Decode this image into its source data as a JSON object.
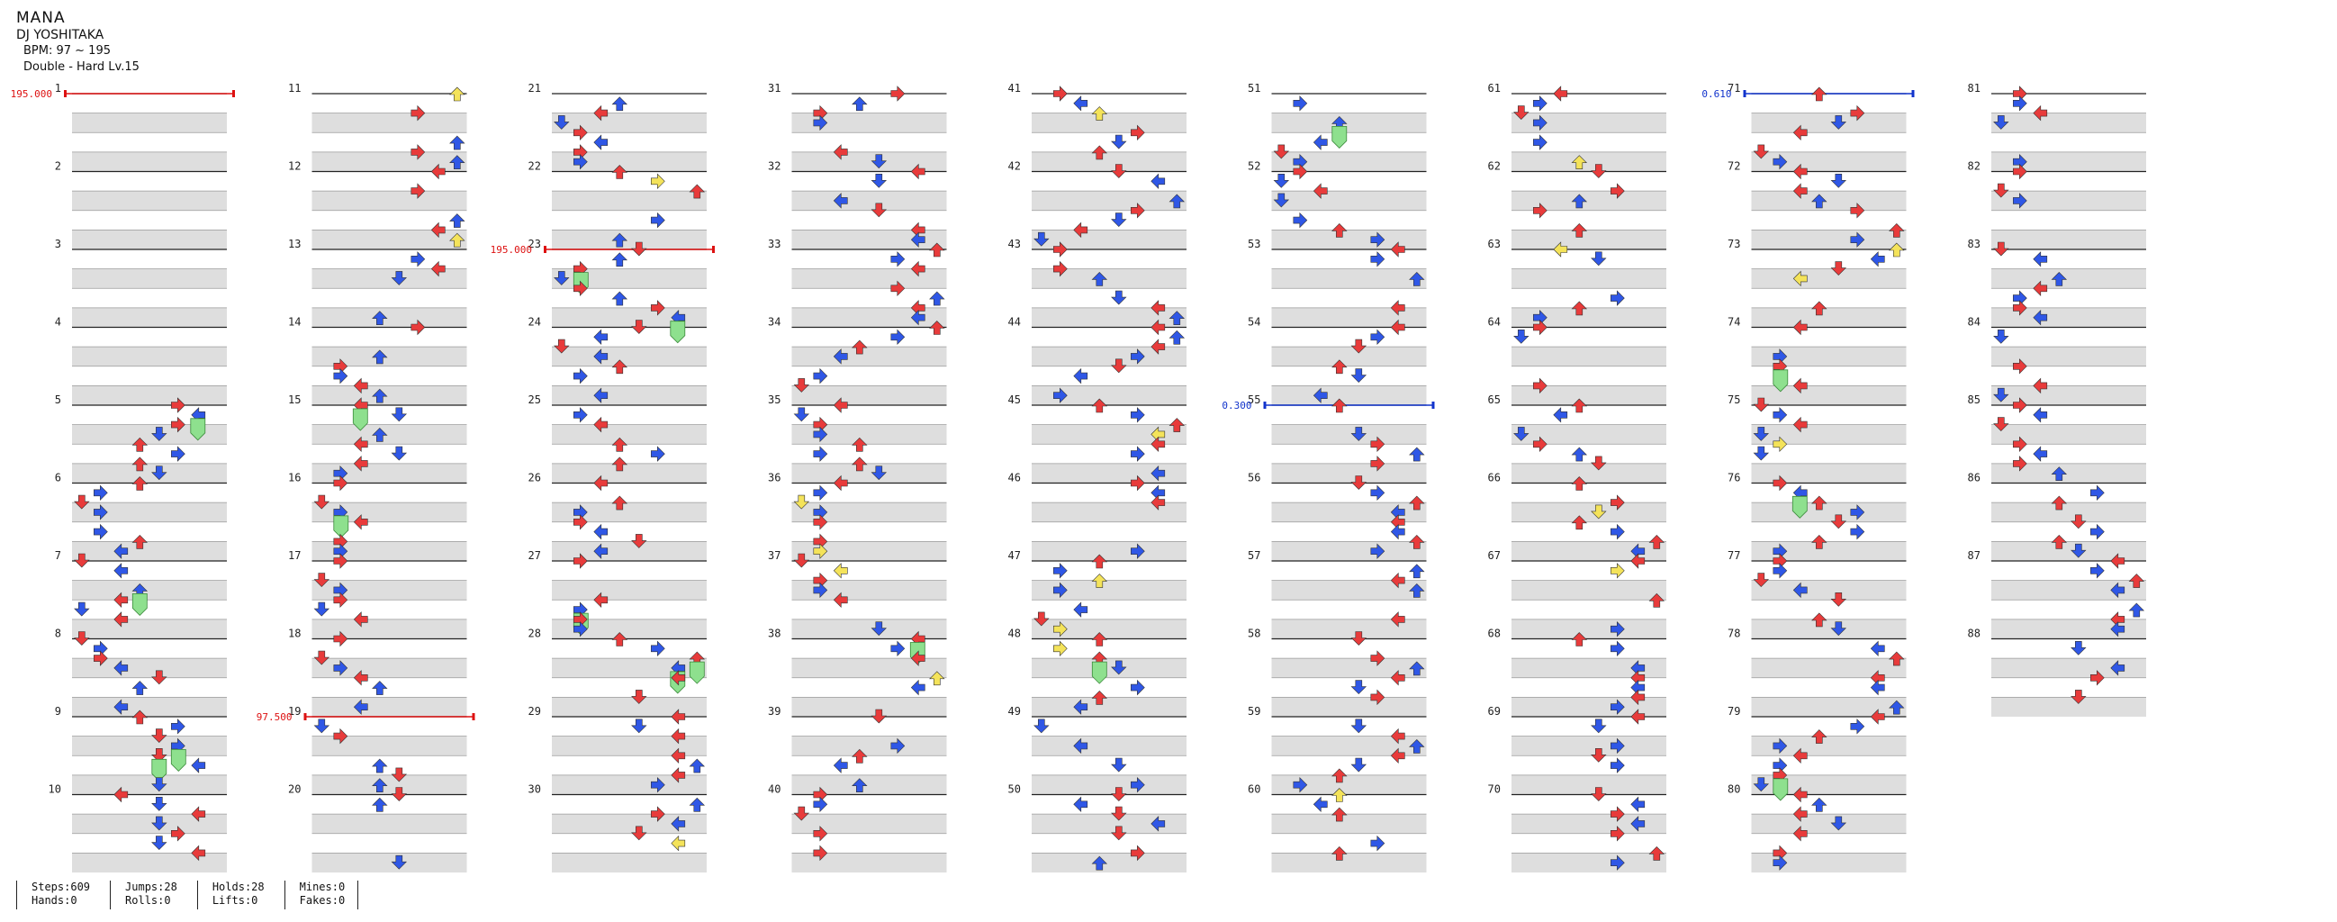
{
  "song": {
    "title": "MANA",
    "artist": "DJ YOSHITAKA",
    "bpm": "BPM: 97 ~ 195",
    "difficulty": "Double - Hard Lv.15"
  },
  "measures": {
    "first": 1,
    "last": 88,
    "per_column": 10,
    "label_every": 1
  },
  "bpm_changes": [
    {
      "measure": 1,
      "beat": 0,
      "value": "195.000"
    },
    {
      "measure": 19,
      "beat": 0,
      "value": "97.500"
    },
    {
      "measure": 23,
      "beat": 0,
      "value": "195.000"
    }
  ],
  "stops": [
    {
      "measure": 55,
      "beat": 0,
      "value": "0.300"
    },
    {
      "measure": 71,
      "beat": 0,
      "value": "0.610"
    }
  ],
  "stats": [
    {
      "label": "Steps",
      "value": "609"
    },
    {
      "label": "Hands",
      "value": "0"
    },
    {
      "label": "Jumps",
      "value": "28"
    },
    {
      "label": "Rolls",
      "value": "0"
    },
    {
      "label": "Holds",
      "value": "28"
    },
    {
      "label": "Lifts",
      "value": "0"
    },
    {
      "label": "Mines",
      "value": "0"
    },
    {
      "label": "Fakes",
      "value": "0"
    }
  ],
  "stats_text": [
    [
      "Steps:609",
      "Hands:0"
    ],
    [
      "Jumps:28",
      "Rolls:0"
    ],
    [
      "Holds:28",
      "Lifts:0"
    ],
    [
      "Mines:0",
      "Fakes:0"
    ]
  ],
  "colors": {
    "quarter_note": "#e83b3b",
    "eighth_note": "#2f57e6",
    "sixteenth_note": "#f4e35a",
    "hold_head": "#8ee08e",
    "bpm_marker": "#dd1111",
    "stop_marker": "#1133cc",
    "stripe": "#dedede",
    "measure_line": "#222222"
  },
  "icons": {
    "note": "arrow-icon",
    "hold": "hold-head-icon",
    "bpm": "bpm-change-marker",
    "stop": "stop-marker"
  }
}
